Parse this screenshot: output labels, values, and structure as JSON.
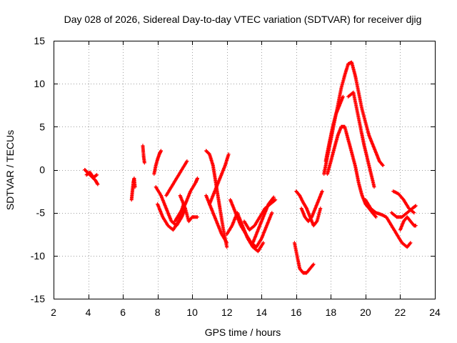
{
  "chart_data": {
    "type": "scatter",
    "title": "Day 028 of 2026, Sidereal Day-to-day VTEC variation (SDTVAR) for receiver djig",
    "xlabel": "GPS time / hours",
    "ylabel": "SDTVAR / TECUs",
    "xlim": [
      2,
      24
    ],
    "ylim": [
      -15,
      15
    ],
    "xticks": [
      2,
      4,
      6,
      8,
      10,
      12,
      14,
      16,
      18,
      20,
      22,
      24
    ],
    "yticks": [
      -15,
      -10,
      -5,
      0,
      5,
      10,
      15
    ],
    "grid": true,
    "marker": "+",
    "color": "#ff0000",
    "series": [
      {
        "name": "s1",
        "x": [
          3.8,
          4.0,
          4.2,
          4.4,
          4.55
        ],
        "y": [
          0.0,
          -0.4,
          -0.8,
          -1.2,
          -1.7
        ]
      },
      {
        "name": "s2",
        "x": [
          3.9,
          4.1,
          4.3,
          4.5
        ],
        "y": [
          -0.6,
          -0.3,
          -0.9,
          -0.6
        ]
      },
      {
        "name": "s3",
        "x": [
          6.5,
          6.55,
          6.6,
          6.65,
          6.7
        ],
        "y": [
          -3.5,
          -2.5,
          -1.5,
          -1.0,
          -2.0
        ]
      },
      {
        "name": "s4",
        "x": [
          7.15,
          7.2,
          7.25
        ],
        "y": [
          2.8,
          1.5,
          0.8
        ]
      },
      {
        "name": "s5",
        "x": [
          7.8,
          7.9,
          8.0,
          8.1,
          8.2
        ],
        "y": [
          -0.5,
          0.5,
          1.2,
          1.8,
          2.2
        ]
      },
      {
        "name": "s6",
        "x": [
          7.9,
          8.2,
          8.5,
          8.8,
          9.1,
          9.4,
          9.6
        ],
        "y": [
          -2.0,
          -3.0,
          -4.5,
          -6.0,
          -6.5,
          -5.5,
          -4.5
        ]
      },
      {
        "name": "s7",
        "x": [
          8.0,
          8.3,
          8.6,
          8.9,
          9.2,
          9.5
        ],
        "y": [
          -4.0,
          -5.5,
          -6.5,
          -7.0,
          -6.0,
          -4.0
        ]
      },
      {
        "name": "s8",
        "x": [
          8.5,
          8.8,
          9.1,
          9.4,
          9.7
        ],
        "y": [
          -3.0,
          -2.0,
          -1.0,
          0.0,
          1.0
        ]
      },
      {
        "name": "s9",
        "x": [
          9.0,
          9.3,
          9.6,
          9.9,
          10.2,
          10.3
        ],
        "y": [
          -6.0,
          -5.0,
          -4.0,
          -2.5,
          -1.5,
          -1.0
        ]
      },
      {
        "name": "s10",
        "x": [
          9.3,
          9.6,
          9.8,
          10.0,
          10.3
        ],
        "y": [
          -3.0,
          -4.5,
          -6.0,
          -5.5,
          -5.5
        ]
      },
      {
        "name": "s11",
        "x": [
          10.8,
          11.0,
          11.2,
          11.4,
          11.6,
          11.8,
          12.0
        ],
        "y": [
          2.2,
          1.8,
          0.5,
          -2.0,
          -4.5,
          -7.0,
          -9.0
        ]
      },
      {
        "name": "s12",
        "x": [
          10.8,
          11.1,
          11.4,
          11.7,
          12.0
        ],
        "y": [
          -3.0,
          -4.5,
          -6.0,
          -7.5,
          -8.5
        ]
      },
      {
        "name": "s13",
        "x": [
          11.0,
          11.3,
          11.6,
          11.9,
          12.1
        ],
        "y": [
          -4.0,
          -2.5,
          -1.0,
          0.5,
          1.8
        ]
      },
      {
        "name": "s14",
        "x": [
          12.0,
          12.3,
          12.6,
          12.9,
          13.2,
          13.5,
          13.8,
          14.1
        ],
        "y": [
          -7.5,
          -6.5,
          -5.0,
          -6.5,
          -8.0,
          -9.0,
          -9.5,
          -8.5
        ]
      },
      {
        "name": "s15",
        "x": [
          12.2,
          12.5,
          12.8,
          13.1,
          13.4,
          13.7,
          14.0,
          14.3,
          14.6
        ],
        "y": [
          -3.5,
          -5.0,
          -6.5,
          -7.5,
          -8.5,
          -9.0,
          -8.0,
          -6.5,
          -5.0
        ]
      },
      {
        "name": "s16",
        "x": [
          13.0,
          13.3,
          13.6,
          13.9,
          14.2,
          14.5,
          14.8
        ],
        "y": [
          -6.0,
          -7.0,
          -6.5,
          -5.5,
          -4.5,
          -4.0,
          -3.5
        ]
      },
      {
        "name": "s17",
        "x": [
          13.5,
          13.8,
          14.1,
          14.4,
          14.7
        ],
        "y": [
          -8.5,
          -7.0,
          -5.5,
          -4.0,
          -3.2
        ]
      },
      {
        "name": "s18",
        "x": [
          15.9,
          16.0,
          16.1,
          16.2,
          16.4,
          16.6,
          16.8,
          17.0
        ],
        "y": [
          -8.5,
          -9.5,
          -10.5,
          -11.5,
          -12.0,
          -12.0,
          -11.5,
          -11.0
        ]
      },
      {
        "name": "s19",
        "x": [
          16.0,
          16.2,
          16.4,
          16.6,
          16.8,
          17.0,
          17.2,
          17.4
        ],
        "y": [
          -2.5,
          -3.0,
          -3.8,
          -4.5,
          -5.5,
          -6.5,
          -6.0,
          -4.5
        ]
      },
      {
        "name": "s20",
        "x": [
          16.3,
          16.5,
          16.7,
          16.9,
          17.1,
          17.3,
          17.5
        ],
        "y": [
          -4.5,
          -5.5,
          -6.0,
          -5.5,
          -4.5,
          -3.5,
          -2.5
        ]
      },
      {
        "name": "s21",
        "x": [
          17.6,
          17.8,
          18.0,
          18.2,
          18.4,
          18.6,
          18.8,
          19.0,
          19.2,
          19.4,
          19.6,
          19.8,
          20.0,
          20.2,
          20.4,
          20.6,
          20.8,
          21.0
        ],
        "y": [
          -0.5,
          1.5,
          3.5,
          5.5,
          7.5,
          9.5,
          11.0,
          12.3,
          12.5,
          11.0,
          9.0,
          7.0,
          5.5,
          4.0,
          3.0,
          2.0,
          1.0,
          0.5
        ]
      },
      {
        "name": "s22",
        "x": [
          17.8,
          18.0,
          18.2,
          18.4,
          18.6,
          18.8,
          19.0,
          19.2,
          19.4,
          19.6,
          19.8,
          20.0,
          20.2,
          20.4,
          20.6
        ],
        "y": [
          -0.5,
          1.0,
          2.5,
          4.0,
          5.0,
          5.0,
          3.5,
          2.0,
          0.5,
          -1.5,
          -3.0,
          -4.0,
          -4.5,
          -5.0,
          -5.5
        ]
      },
      {
        "name": "s23",
        "x": [
          17.7,
          17.9,
          18.1,
          18.3,
          18.5,
          18.7
        ],
        "y": [
          1.0,
          3.0,
          5.0,
          6.5,
          7.5,
          8.5
        ]
      },
      {
        "name": "s24",
        "x": [
          19.0,
          19.3,
          19.6,
          19.9,
          20.2,
          20.5
        ],
        "y": [
          8.5,
          9.0,
          6.0,
          3.0,
          0.5,
          -2.0
        ]
      },
      {
        "name": "s25",
        "x": [
          20.0,
          20.3,
          20.6,
          20.9,
          21.2,
          21.5,
          21.8,
          22.1,
          22.4,
          22.6
        ],
        "y": [
          -3.5,
          -4.5,
          -5.0,
          -5.2,
          -5.5,
          -6.5,
          -7.5,
          -8.5,
          -9.0,
          -8.5
        ]
      },
      {
        "name": "s26",
        "x": [
          21.5,
          21.8,
          22.1,
          22.4,
          22.7,
          22.9
        ],
        "y": [
          -5.0,
          -5.5,
          -5.5,
          -5.0,
          -4.5,
          -4.2
        ]
      },
      {
        "name": "s27",
        "x": [
          21.6,
          21.9,
          22.2,
          22.5,
          22.8
        ],
        "y": [
          -2.5,
          -2.8,
          -3.5,
          -4.5,
          -5.0
        ]
      },
      {
        "name": "s28",
        "x": [
          22.0,
          22.2,
          22.4,
          22.6,
          22.8,
          22.9
        ],
        "y": [
          -7.0,
          -6.0,
          -5.5,
          -6.0,
          -6.5,
          -6.5
        ]
      }
    ]
  }
}
